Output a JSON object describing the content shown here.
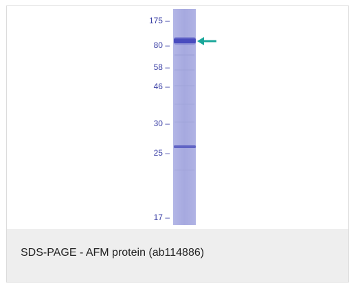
{
  "figure": {
    "caption": "SDS-PAGE - AFM protein (ab114886)",
    "arrow_color": "#1aa79a",
    "marker_color": "#3a3fa5",
    "lane_color": "#a9ace0",
    "markers": [
      {
        "label": "175",
        "dash": "–"
      },
      {
        "label": "80",
        "dash": "–"
      },
      {
        "label": "58",
        "dash": "–"
      },
      {
        "label": "46",
        "dash": "–"
      },
      {
        "label": "30",
        "dash": "–"
      },
      {
        "label": "25",
        "dash": "–"
      },
      {
        "label": "17",
        "dash": "–"
      }
    ]
  }
}
